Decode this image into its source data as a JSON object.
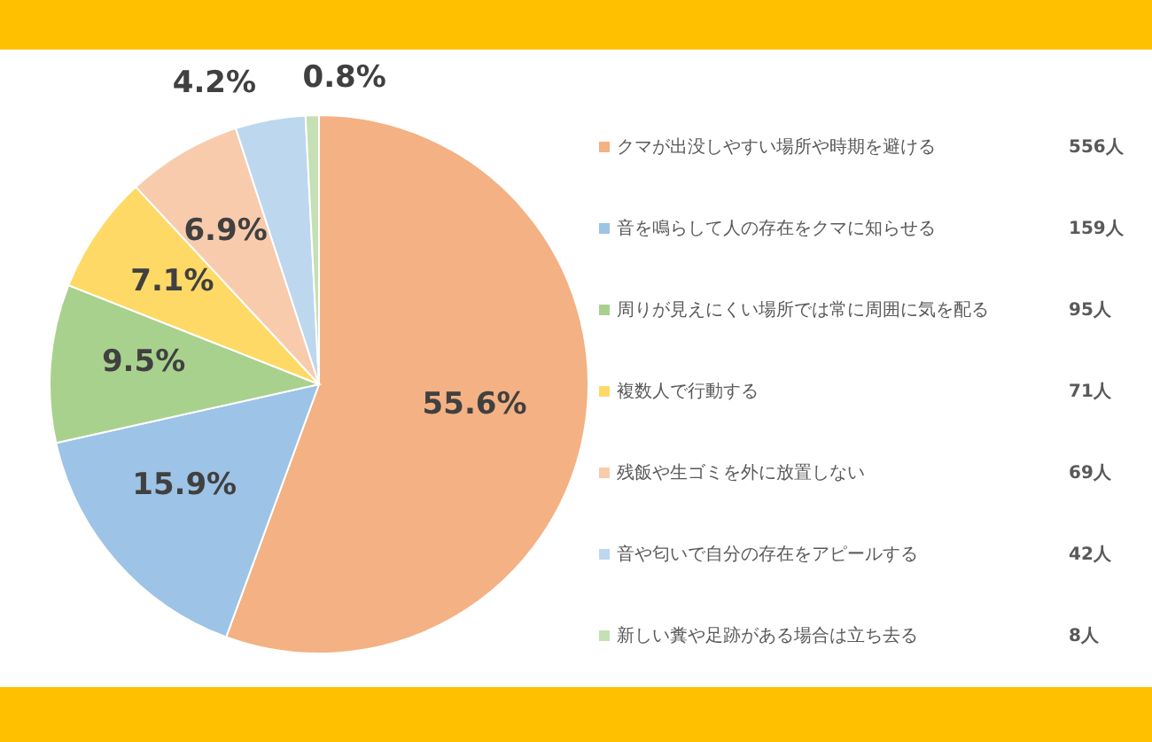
{
  "chart_data": {
    "type": "pie",
    "categories": [
      "クマが出没しやすい場所や時期を避ける",
      "音を鳴らして人の存在をクマに知らせる",
      "周りが見えにくい場所では常に周囲に気を配る",
      "複数人で行動する",
      "残飯や生ゴミを外に放置しない",
      "音や匂いで自分の存在をアピールする",
      "新しい糞や足跡がある場合は立ち去る"
    ],
    "values": [
      55.6,
      15.9,
      9.5,
      7.1,
      6.9,
      4.2,
      0.8
    ],
    "colors": [
      "#f4b183",
      "#9dc3e6",
      "#a9d18e",
      "#ffd966",
      "#f8cbad",
      "#bdd7ee",
      "#c5e0b4"
    ],
    "value_labels": [
      "55.6%",
      "15.9%",
      "9.5%",
      "7.1%",
      "6.9%",
      "4.2%",
      "0.8%"
    ],
    "annotations": [
      "556人",
      "159人",
      "95人",
      "71人",
      "69人",
      "42人",
      "8人"
    ],
    "legend": "right"
  }
}
